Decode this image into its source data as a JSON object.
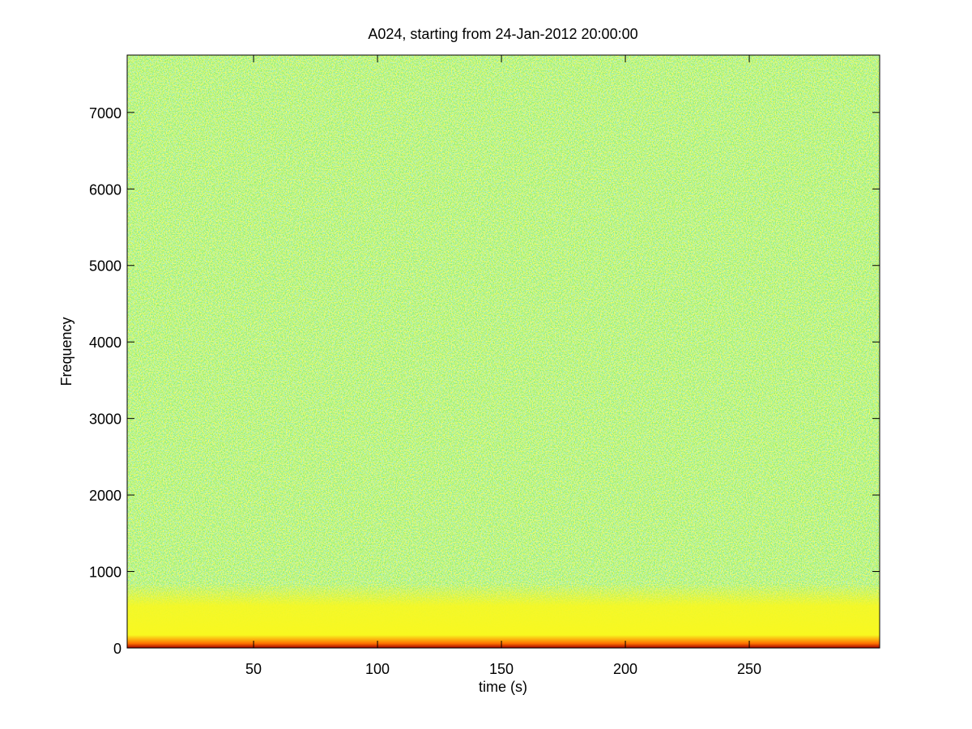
{
  "chart_data": {
    "type": "spectrogram",
    "title": "A024, starting from 24-Jan-2012 20:00:00",
    "x_label": "time (s)",
    "y_label": "Frequency",
    "xlim": [
      -1,
      302.6
    ],
    "ylim": [
      0,
      7750
    ],
    "xticks": [
      50,
      100,
      150,
      200,
      250
    ],
    "yticks": [
      0,
      1000,
      2000,
      3000,
      4000,
      5000,
      6000,
      7000
    ],
    "colormap": [
      "#a00000",
      "#ff7000",
      "#f8f820",
      "#96f06a",
      "#66dcb0"
    ]
  }
}
